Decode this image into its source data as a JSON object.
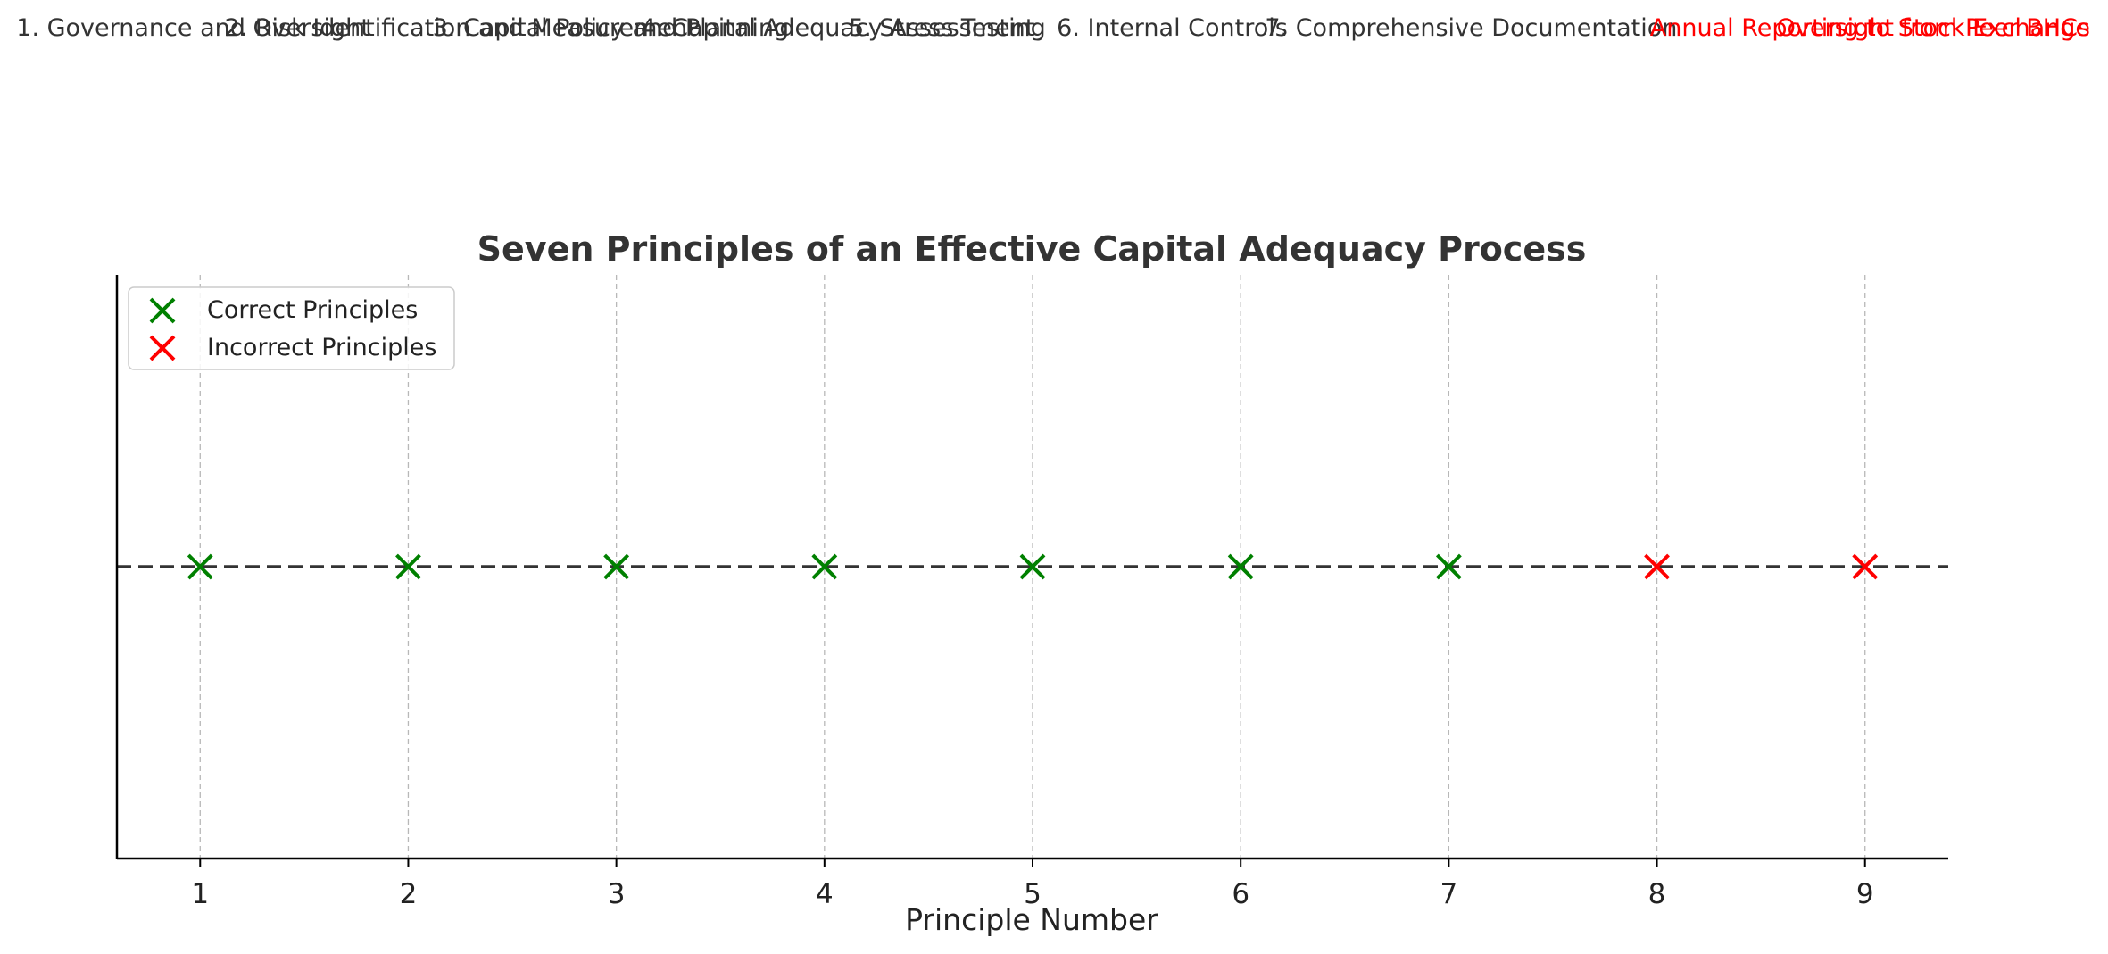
{
  "chart_data": {
    "type": "scatter",
    "title": "Seven Principles of an Effective Capital Adequacy Process",
    "xlabel": "Principle Number",
    "ylabel": "",
    "xlim": [
      0.6,
      9.4
    ],
    "ylim": [
      -1,
      1
    ],
    "x_ticks": [
      1,
      2,
      3,
      4,
      5,
      6,
      7,
      8,
      9
    ],
    "grid": "vertical dashed",
    "legend_position": "top-left",
    "baseline": {
      "y": 0,
      "style": "dashed",
      "color": "#333333"
    },
    "marker": "x",
    "series": [
      {
        "name": "Correct Principles",
        "color": "#008000",
        "x": [
          1,
          2,
          3,
          4,
          5,
          6,
          7
        ],
        "y": [
          0,
          0,
          0,
          0,
          0,
          0,
          0
        ]
      },
      {
        "name": "Incorrect Principles",
        "color": "#ff0000",
        "x": [
          8,
          9
        ],
        "y": [
          0,
          0
        ]
      }
    ],
    "principle_labels": [
      {
        "text": "1. Governance and Oversight",
        "color": "#333333",
        "anchor": "start"
      },
      {
        "text": "2. Risk Identification and Measurement",
        "color": "#333333",
        "anchor": "start"
      },
      {
        "text": "3. Capital Policy and Planning",
        "color": "#333333",
        "anchor": "start"
      },
      {
        "text": "4. Capital Adequacy Assessment",
        "color": "#333333",
        "anchor": "start"
      },
      {
        "text": "5. Stress Testing",
        "color": "#333333",
        "anchor": "start"
      },
      {
        "text": "6. Internal Controls",
        "color": "#333333",
        "anchor": "start"
      },
      {
        "text": "7. Comprehensive Documentation",
        "color": "#333333",
        "anchor": "start"
      },
      {
        "text": "Oversight from Peer BHCs",
        "color": "#ff0000",
        "anchor": "end"
      },
      {
        "text": "Annual Reporting to Stock Exchange",
        "color": "#ff0000",
        "anchor": "end"
      }
    ]
  }
}
